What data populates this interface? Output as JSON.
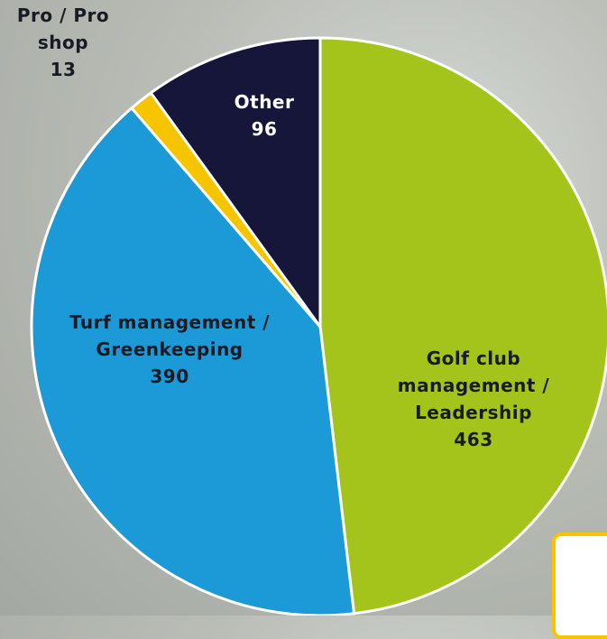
{
  "chart_data": {
    "type": "pie",
    "categories": [
      "Golf club management / Leadership",
      "Turf management / Greenkeeping",
      "Pro / Pro shop",
      "Other"
    ],
    "values": [
      463,
      390,
      13,
      96
    ],
    "colors": [
      "#a4c41b",
      "#1b9ad7",
      "#f6c500",
      "#15163a"
    ]
  }
}
